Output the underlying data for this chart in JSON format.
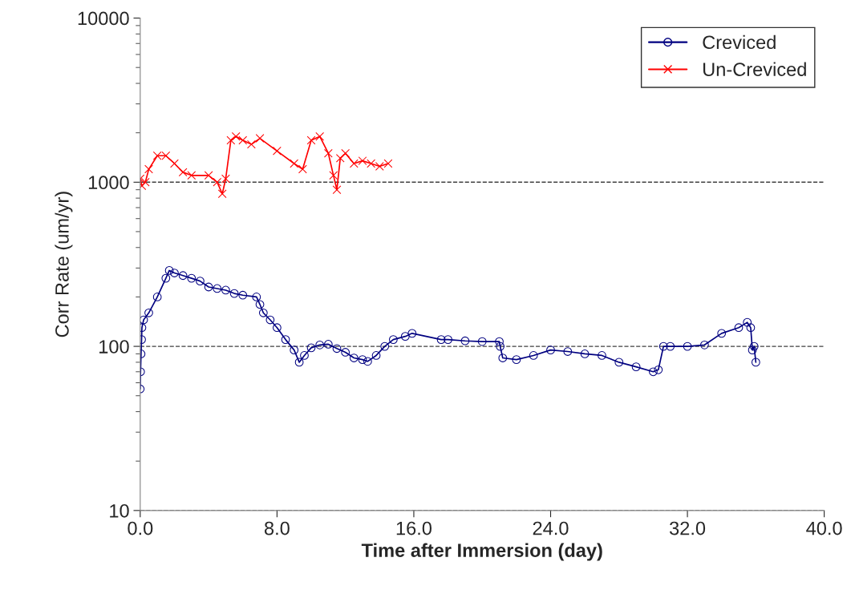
{
  "chart_data": {
    "type": "line",
    "xlabel": "Time after Immersion (day)",
    "ylabel": "Corr Rate (um/yr)",
    "log": "y",
    "xlim": [
      0,
      40
    ],
    "xticks": [
      {
        "value": 0,
        "label": "0.0"
      },
      {
        "value": 8,
        "label": "8.0"
      },
      {
        "value": 16,
        "label": "16.0"
      },
      {
        "value": 24,
        "label": "24.0"
      },
      {
        "value": 32,
        "label": "32.0"
      },
      {
        "value": 40,
        "label": "40.0"
      }
    ],
    "ylim": [
      10,
      10000
    ],
    "yticks": [
      10,
      100,
      1000,
      10000
    ],
    "grid": "y",
    "legend": "top right",
    "series": [
      {
        "name": "Creviced",
        "color": "#000080",
        "marker": "circle",
        "x": [
          0.0,
          0.02,
          0.05,
          0.08,
          0.1,
          0.2,
          0.5,
          1.0,
          1.5,
          1.7,
          2.0,
          2.5,
          3.0,
          3.5,
          4.0,
          4.5,
          5.0,
          5.5,
          6.0,
          6.8,
          7.0,
          7.2,
          7.6,
          8.0,
          8.5,
          9.0,
          9.3,
          9.6,
          10.0,
          10.5,
          11.0,
          11.5,
          12.0,
          12.5,
          13.0,
          13.3,
          13.8,
          14.3,
          14.8,
          15.5,
          15.9,
          17.6,
          18.0,
          19.0,
          20.0,
          21.0,
          21.05,
          21.2,
          22.0,
          23.0,
          24.0,
          25.0,
          26.0,
          27.0,
          28.0,
          29.0,
          30.0,
          30.3,
          30.6,
          31.0,
          32.0,
          33.0,
          34.0,
          35.0,
          35.5,
          35.7,
          35.8,
          35.9,
          36.0
        ],
        "values": [
          55,
          70,
          90,
          110,
          130,
          145,
          160,
          200,
          260,
          290,
          280,
          270,
          260,
          250,
          230,
          225,
          220,
          210,
          205,
          200,
          180,
          160,
          145,
          130,
          110,
          95,
          80,
          88,
          98,
          102,
          103,
          97,
          92,
          85,
          83,
          81,
          88,
          100,
          110,
          115,
          120,
          110,
          110,
          108,
          107,
          107,
          100,
          85,
          83,
          88,
          95,
          93,
          90,
          88,
          80,
          75,
          70,
          72,
          100,
          100,
          100,
          102,
          120,
          130,
          140,
          130,
          95,
          100,
          80
        ]
      },
      {
        "name": "Un-Creviced",
        "color": "#ff0000",
        "marker": "cross",
        "x": [
          0.0,
          0.1,
          0.3,
          0.5,
          1.0,
          1.5,
          2.0,
          2.5,
          3.0,
          4.0,
          4.5,
          4.8,
          5.0,
          5.3,
          5.6,
          6.0,
          6.5,
          7.0,
          8.0,
          9.0,
          9.5,
          10.0,
          10.5,
          11.0,
          11.3,
          11.5,
          11.7,
          12.0,
          12.5,
          13.0,
          13.5,
          14.0,
          14.5
        ],
        "values": [
          1050,
          950,
          1000,
          1200,
          1450,
          1450,
          1300,
          1150,
          1100,
          1100,
          1000,
          850,
          1050,
          1800,
          1900,
          1800,
          1700,
          1850,
          1550,
          1300,
          1200,
          1800,
          1900,
          1500,
          1100,
          900,
          1400,
          1500,
          1300,
          1350,
          1300,
          1250,
          1300
        ]
      }
    ]
  }
}
